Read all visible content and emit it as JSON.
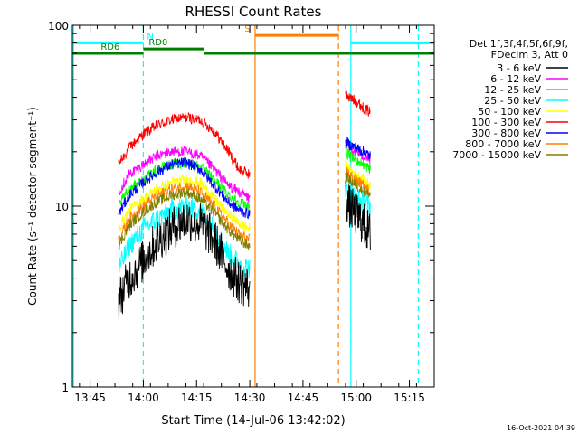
{
  "chart_data": {
    "type": "line",
    "title": "RHESSI Count Rates",
    "xlabel": "Start Time (14-Jul-06 13:42:02)",
    "ylabel": "Count Rate (s⁻¹ detector segment⁻¹)",
    "yscale": "log",
    "ylim": [
      1,
      100
    ],
    "xlim_minutes": [
      -2,
      100
    ],
    "yticks": [
      {
        "value": 1,
        "label": "1"
      },
      {
        "value": 10,
        "label": "10"
      },
      {
        "value": 100,
        "label": "100"
      }
    ],
    "xticks": [
      {
        "value": 3,
        "label": "13:45"
      },
      {
        "value": 18,
        "label": "14:00"
      },
      {
        "value": 33,
        "label": "14:15"
      },
      {
        "value": 48,
        "label": "14:30"
      },
      {
        "value": 63,
        "label": "14:45"
      },
      {
        "value": 78,
        "label": "15:00"
      },
      {
        "value": 93,
        "label": "15:15"
      }
    ],
    "legend": {
      "position": "right",
      "header": [
        "Det 1f,3f,4f,5f,6f,9f,",
        "FDecim 3, Att 0"
      ],
      "entries": [
        {
          "name": "3 - 6 keV",
          "color": "#000000"
        },
        {
          "name": "6 - 12 keV",
          "color": "#ff00ff"
        },
        {
          "name": "12 - 25 keV",
          "color": "#00ff00"
        },
        {
          "name": "25 - 50 keV",
          "color": "#00ffff"
        },
        {
          "name": "50 - 100 keV",
          "color": "#ffff00"
        },
        {
          "name": "100 - 300 keV",
          "color": "#ff0000"
        },
        {
          "name": "300 - 800 keV",
          "color": "#0000ff"
        },
        {
          "name": "800 - 7000 keV",
          "color": "#ff8000"
        },
        {
          "name": "7000 - 15000 keV",
          "color": "#808000"
        }
      ]
    },
    "series": [
      {
        "name": "100 - 300 keV",
        "color": "#ff0000",
        "segments": [
          {
            "x": [
              11,
              14,
              18,
              22,
              26,
              30,
              34,
              38,
              42,
              45,
              48
            ],
            "y": [
              17,
              21,
              25,
              28,
              30,
              31,
              30,
              26,
              20,
              16,
              15
            ]
          },
          {
            "x": [
              75,
              76,
              78,
              80,
              82
            ],
            "y": [
              42,
              40,
              38,
              35,
              33
            ]
          }
        ]
      },
      {
        "name": "6 - 12 keV",
        "color": "#ff00ff",
        "segments": [
          {
            "x": [
              11,
              14,
              18,
              22,
              26,
              30,
              34,
              38,
              42,
              45,
              48
            ],
            "y": [
              12,
              15,
              17,
              19,
              20,
              20,
              19,
              16,
              13,
              12,
              11
            ]
          },
          {
            "x": [
              75,
              76,
              78,
              80,
              82
            ],
            "y": [
              22,
              21,
              20,
              19,
              18
            ]
          }
        ]
      },
      {
        "name": "12 - 25 keV",
        "color": "#00ff00",
        "segments": [
          {
            "x": [
              11,
              14,
              18,
              22,
              26,
              30,
              34,
              38,
              42,
              45,
              48
            ],
            "y": [
              10,
              12.5,
              14,
              16,
              17,
              17.5,
              16.5,
              14,
              11.5,
              10.5,
              10
            ]
          },
          {
            "x": [
              75,
              76,
              78,
              80,
              82
            ],
            "y": [
              20,
              19,
              18,
              17,
              16
            ]
          }
        ]
      },
      {
        "name": "300 - 800 keV",
        "color": "#0000ff",
        "segments": [
          {
            "x": [
              11,
              14,
              18,
              22,
              26,
              30,
              34,
              38,
              42,
              45,
              48
            ],
            "y": [
              9,
              11.5,
              13.5,
              15.5,
              17,
              17.5,
              16,
              13,
              10.5,
              9.5,
              9
            ]
          },
          {
            "x": [
              75,
              76,
              78,
              80,
              82
            ],
            "y": [
              23,
              22,
              21,
              20,
              19
            ]
          }
        ]
      },
      {
        "name": "50 - 100 keV",
        "color": "#ffff00",
        "segments": [
          {
            "x": [
              11,
              14,
              18,
              22,
              26,
              30,
              34,
              38,
              42,
              45,
              48
            ],
            "y": [
              7.5,
              9.5,
              11,
              12.5,
              13.5,
              14,
              13.5,
              11,
              9,
              8,
              7.5
            ]
          },
          {
            "x": [
              75,
              76,
              78,
              80,
              82
            ],
            "y": [
              17,
              16,
              15,
              14,
              13
            ]
          }
        ]
      },
      {
        "name": "800 - 7000 keV",
        "color": "#ff8000",
        "segments": [
          {
            "x": [
              11,
              14,
              18,
              22,
              26,
              30,
              34,
              38,
              42,
              45,
              48
            ],
            "y": [
              6.5,
              8.5,
              10,
              11.5,
              12.5,
              13,
              12,
              10,
              8,
              7,
              6.5
            ]
          },
          {
            "x": [
              75,
              76,
              78,
              80,
              82
            ],
            "y": [
              16,
              15,
              14,
              13,
              12
            ]
          }
        ]
      },
      {
        "name": "7000 - 15000 keV",
        "color": "#808000",
        "segments": [
          {
            "x": [
              11,
              14,
              18,
              22,
              26,
              30,
              34,
              38,
              42,
              45,
              48
            ],
            "y": [
              6,
              7.8,
              9.3,
              10.6,
              11.5,
              12,
              11,
              9.2,
              7.4,
              6.5,
              6
            ]
          },
          {
            "x": [
              75,
              76,
              78,
              80,
              82
            ],
            "y": [
              15,
              14,
              13,
              12,
              11.5
            ]
          }
        ]
      },
      {
        "name": "25 - 50 keV",
        "color": "#00ffff",
        "segments": [
          {
            "x": [
              11,
              14,
              18,
              22,
              26,
              30,
              34,
              38,
              42,
              45,
              48
            ],
            "y": [
              4.5,
              6,
              7.5,
              8.5,
              9.5,
              10,
              9.5,
              7.5,
              5.5,
              4.8,
              4.5
            ]
          },
          {
            "x": [
              75,
              76,
              78,
              80,
              82
            ],
            "y": [
              13,
              12,
              11,
              10.5,
              10
            ]
          }
        ]
      },
      {
        "name": "3 - 6 keV",
        "color": "#000000",
        "segments": [
          {
            "x": [
              11,
              14,
              18,
              22,
              26,
              30,
              34,
              38,
              42,
              45,
              48
            ],
            "y": [
              3,
              4,
              5,
              6.5,
              7.5,
              8.5,
              8,
              6.5,
              4.5,
              3.8,
              3.5
            ]
          },
          {
            "x": [
              75,
              76,
              78,
              80,
              82
            ],
            "y": [
              11,
              10,
              9,
              8,
              7
            ]
          }
        ]
      }
    ],
    "vertical_markers": [
      {
        "x": -1.7,
        "color": "#00ffff",
        "style": "solid"
      },
      {
        "x": 18,
        "color": "#00ffff",
        "style": "dashed"
      },
      {
        "x": 49.5,
        "color": "#ff8000",
        "style": "solid"
      },
      {
        "x": 73,
        "color": "#ff8000",
        "style": "dashed"
      },
      {
        "x": 76.5,
        "color": "#00ffff",
        "style": "solid"
      },
      {
        "x": 95.5,
        "color": "#00ffff",
        "style": "dashed"
      }
    ],
    "flag_bars": [
      {
        "label": "N",
        "color": "#00ffff",
        "segments": [
          [
            -2,
            18
          ],
          [
            76.5,
            100
          ]
        ],
        "label_x": 19,
        "y": 80
      },
      {
        "label": "RD0",
        "color": "#007f00",
        "segments": [
          [
            18,
            35
          ]
        ],
        "label_x": 19.5,
        "y": 74
      },
      {
        "label": "RD6",
        "color": "#007f00",
        "segments": [
          [
            -2,
            18
          ],
          [
            35,
            73
          ],
          [
            73,
            81
          ],
          [
            81,
            100
          ]
        ],
        "label_x": 6,
        "y": 70
      },
      {
        "label": "S",
        "color": "#ff8000",
        "segments": [
          [
            49.5,
            73
          ]
        ],
        "label_x": 46.5,
        "y": 88
      }
    ],
    "footer_timestamp": "16-Oct-2021 04:39"
  }
}
